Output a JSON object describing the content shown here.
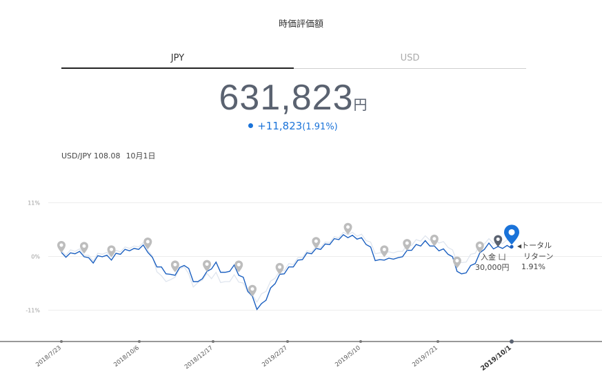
{
  "header": {
    "title": "時価評価額"
  },
  "tabs": [
    {
      "label": "JPY",
      "active": true
    },
    {
      "label": "USD",
      "active": false
    }
  ],
  "valuation": {
    "amount": "631,823",
    "unit": "円",
    "change": "+11,823",
    "change_pct": "(1.91%)"
  },
  "fx": {
    "pair_rate": "USD/JPY 108.08",
    "date": "10月1日"
  },
  "markers": {
    "deposit_label": "入金",
    "deposit_amount": "30,000円",
    "total_label_line1": "トータル",
    "total_label_line2": "リターン",
    "total_pct": "1.91%"
  },
  "colors": {
    "accent": "#1a73d9",
    "benchmark": "#dfe5ee",
    "text": "#5a6270"
  },
  "chart_data": {
    "type": "line",
    "yticks": [
      "11%",
      "0%",
      "-11%"
    ],
    "ylim": [
      -17,
      16
    ],
    "x_ticks": [
      "2018/7/23",
      "2018/10/6",
      "2018/12/17",
      "2019/2/27",
      "2019/5/10",
      "2019/7/21",
      "2019/10/1"
    ],
    "highlight_tick": "2019/10/1",
    "series": [
      {
        "values": [
          0.5,
          0.2,
          0.4,
          0.9,
          0.7,
          0.3,
          -0.6,
          -1.0,
          -0.2,
          0.3,
          -0.1,
          -0.4,
          0.3,
          0.8,
          1.1,
          1.5,
          1.3,
          1.8,
          2.0,
          1.2,
          -0.5,
          -1.8,
          -2.5,
          -3.2,
          -4.0,
          -3.5,
          -2.6,
          -1.5,
          -2.8,
          -4.8,
          -5.5,
          -4.2,
          -3.4,
          -2.2,
          -1.5,
          -2.9,
          -3.6,
          -2.7,
          -2.1,
          -3.5,
          -4.6,
          -6.8,
          -8.5,
          -10.5,
          -10.0,
          -8.6,
          -6.8,
          -5.2,
          -4.0,
          -3.2,
          -2.5,
          -1.8,
          -1.1,
          -0.3,
          0.4,
          0.9,
          1.3,
          1.8,
          2.2,
          2.8,
          3.3,
          3.8,
          4.1,
          4.2,
          4.0,
          3.9,
          3.5,
          2.8,
          1.6,
          -0.5,
          -1.0,
          -0.4,
          -0.7,
          -0.2,
          -0.6,
          0.3,
          0.9,
          1.6,
          2.1,
          2.5,
          2.9,
          2.5,
          1.8,
          1.5,
          1.2,
          0.8,
          -0.4,
          -2.7,
          -3.9,
          -3.0,
          -2.2,
          -1.1,
          0.4,
          1.8,
          2.4,
          1.9,
          1.7,
          2.0,
          1.9,
          2.0
        ]
      },
      {
        "values": [
          0.9,
          0.6,
          1.0,
          1.4,
          1.2,
          0.6,
          -0.1,
          -0.6,
          0.3,
          0.8,
          0.5,
          0.2,
          0.9,
          1.3,
          1.6,
          2.0,
          1.8,
          2.3,
          2.5,
          1.6,
          -0.2,
          -2.8,
          -4.3,
          -4.8,
          -5.1,
          -3.9,
          -2.9,
          -1.8,
          -3.9,
          -5.9,
          -5.7,
          -4.5,
          -3.8,
          -4.2,
          -3.6,
          -5.0,
          -5.5,
          -4.8,
          -4.1,
          -4.9,
          -5.8,
          -7.0,
          -8.2,
          -9.0,
          -8.0,
          -6.8,
          -5.4,
          -4.1,
          -3.3,
          -2.6,
          -1.8,
          -1.3,
          -0.6,
          0.1,
          0.8,
          1.3,
          1.7,
          2.2,
          2.6,
          3.2,
          3.7,
          4.2,
          4.6,
          4.8,
          4.6,
          4.5,
          4.2,
          3.6,
          2.6,
          0.9,
          0.4,
          1.0,
          0.6,
          1.1,
          0.7,
          1.4,
          2.0,
          2.6,
          3.1,
          3.5,
          3.9,
          3.7,
          3.4,
          3.1,
          2.7,
          2.2,
          1.0,
          -0.8,
          -1.6,
          -0.8,
          0.1,
          1.0,
          2.1,
          2.9,
          3.3,
          3.0,
          2.8,
          3.0,
          3.1,
          3.2
        ]
      }
    ]
  }
}
